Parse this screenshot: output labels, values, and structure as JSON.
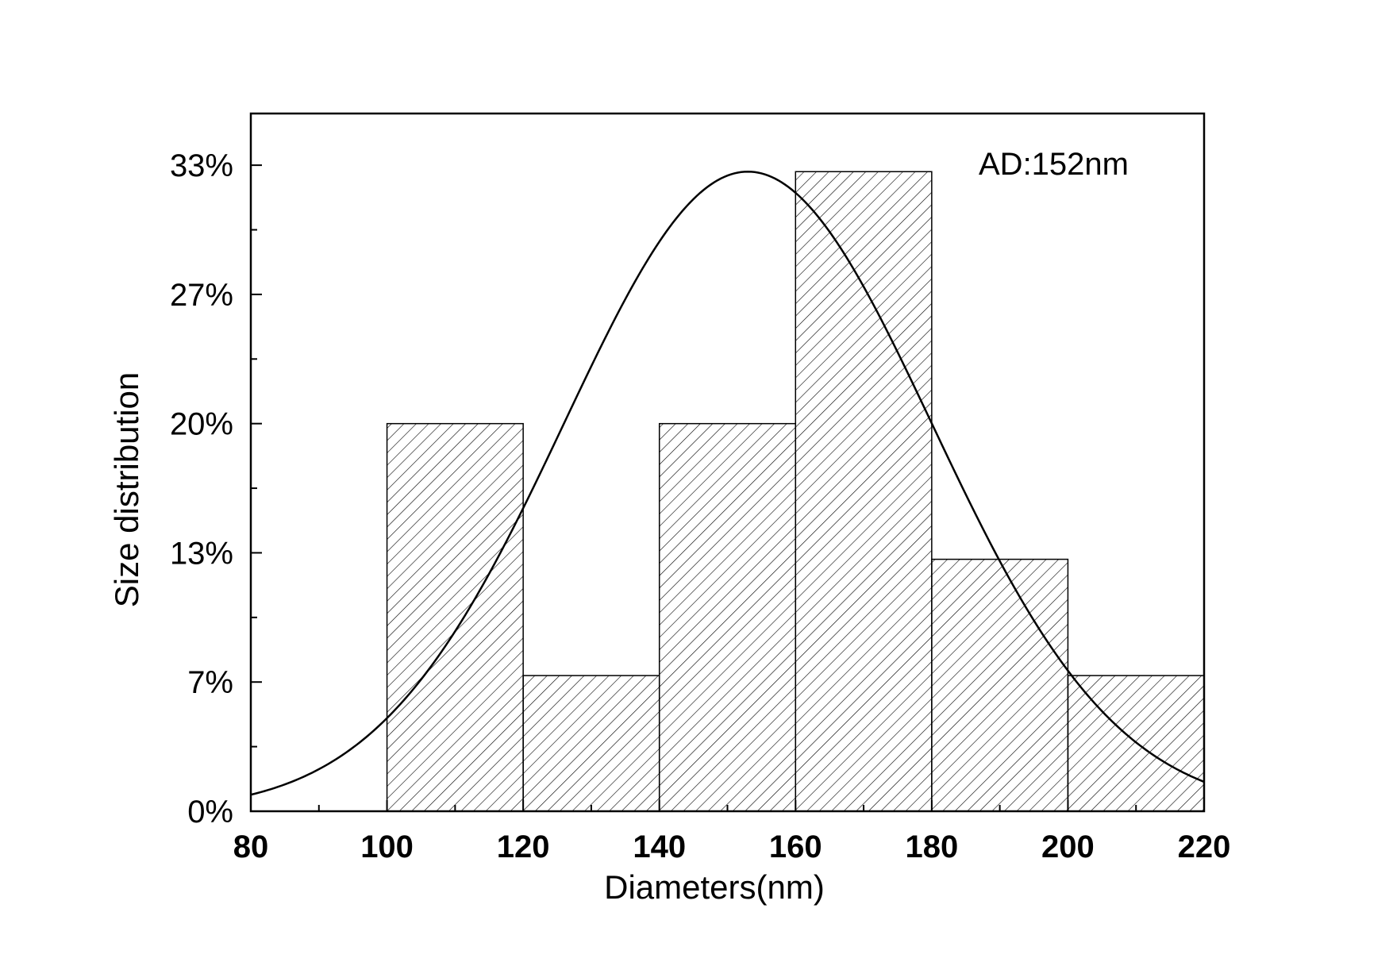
{
  "chart_data": {
    "type": "bar",
    "bins": [
      {
        "x0": 100,
        "x1": 120,
        "value": 20
      },
      {
        "x0": 120,
        "x1": 140,
        "value": 7
      },
      {
        "x0": 140,
        "x1": 160,
        "value": 20
      },
      {
        "x0": 160,
        "x1": 180,
        "value": 33
      },
      {
        "x0": 180,
        "x1": 200,
        "value": 13
      },
      {
        "x0": 200,
        "x1": 220,
        "value": 7
      }
    ],
    "fit_curve": {
      "type": "gaussian",
      "mean": 153,
      "sigma": 27,
      "peak": 33
    },
    "xlabel": "Diameters(nm)",
    "ylabel": "Size distribution",
    "xlim": [
      80,
      220
    ],
    "ylim": [
      0,
      36
    ],
    "x_ticks": [
      80,
      100,
      120,
      140,
      160,
      180,
      200,
      220
    ],
    "x_tick_labels": [
      "80",
      "100",
      "120",
      "140",
      "160",
      "180",
      "200",
      "220"
    ],
    "y_ticks": [
      0,
      6.6667,
      13.3333,
      20,
      26.6667,
      33.3333
    ],
    "y_tick_labels": [
      "0%",
      "7%",
      "13%",
      "20%",
      "27%",
      "33%"
    ],
    "annotation": "AD:152nm",
    "grid": false,
    "bar_fill": "diagonal-hatch",
    "colors": {
      "stroke": "#000000",
      "background": "#ffffff"
    }
  }
}
